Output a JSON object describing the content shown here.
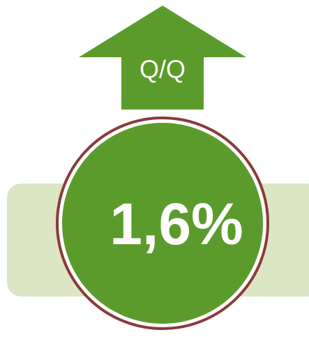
{
  "arrow": {
    "label": "Q/Q"
  },
  "value": "1,6%"
}
